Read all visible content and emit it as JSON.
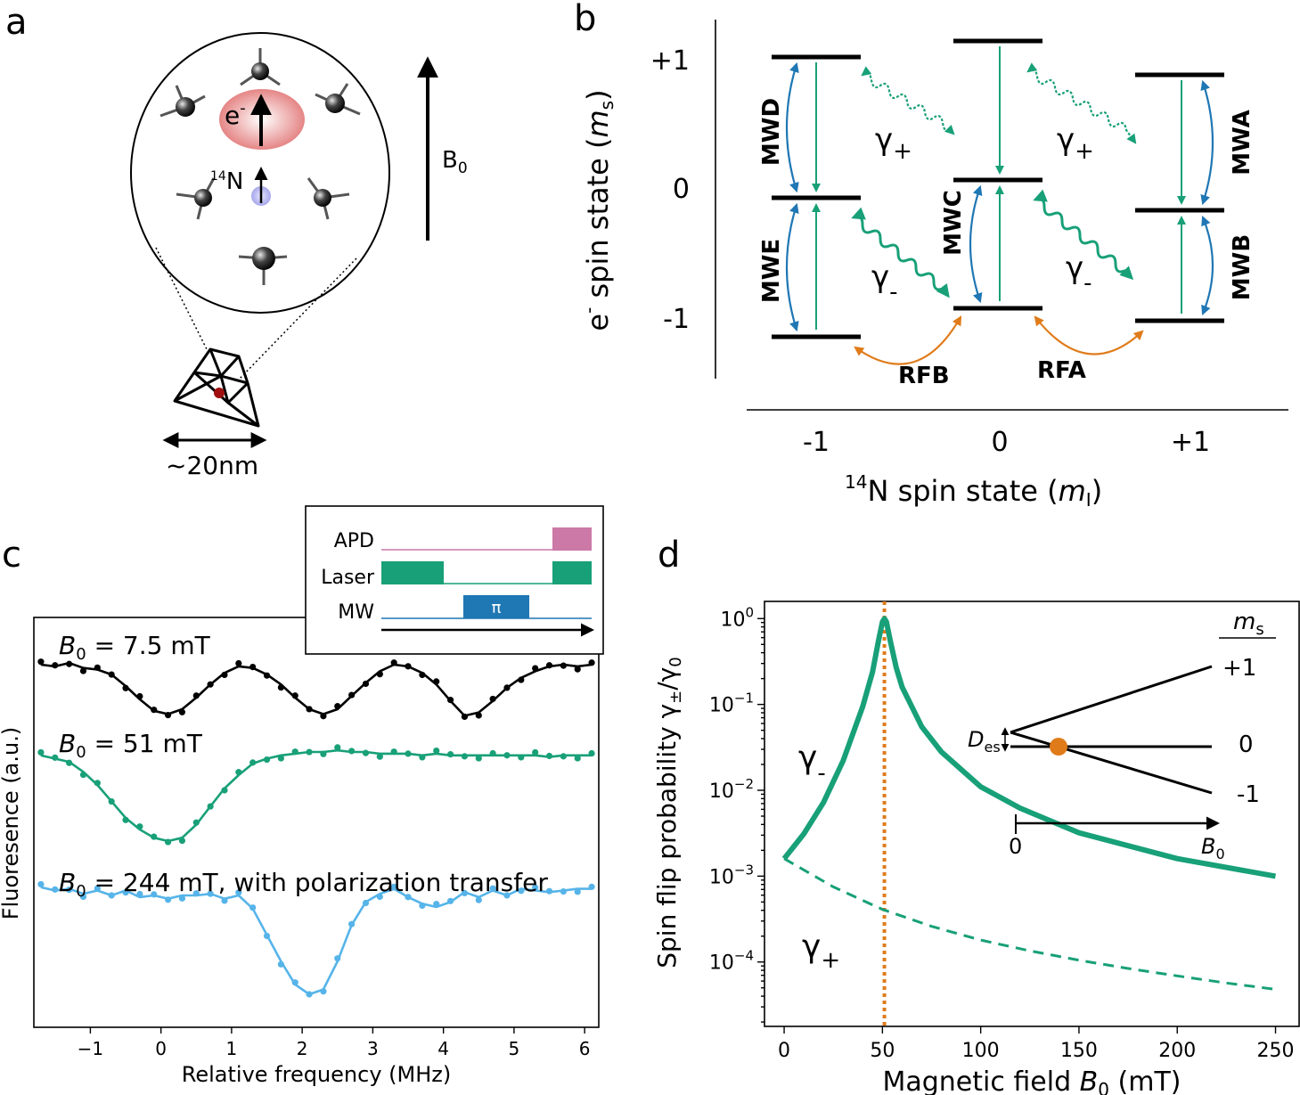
{
  "colors": {
    "green": "#18a078",
    "blue": "#1f77b4",
    "light_blue": "#56b4e9",
    "orange": "#e07b1a",
    "black": "#000000",
    "pink": "#cc79a7"
  },
  "panels": {
    "a": {
      "label": "a",
      "electron_label": "e",
      "electron_sup": "-",
      "nitrogen_sup": "14",
      "nitrogen_label": "N",
      "field_label": "B",
      "field_sub": "0",
      "size_label": "~20nm"
    },
    "b": {
      "label": "b",
      "y_ticks": [
        "+1",
        "0",
        "-1"
      ],
      "y_label": "e",
      "y_label_sup": "-",
      "y_label_rest": " spin state (",
      "y_label_var": "m",
      "y_label_sub": "s",
      "y_label_close": ")",
      "x_ticks": [
        "-1",
        "0",
        "+1"
      ],
      "x_label_sup": "14",
      "x_label": "N spin state (",
      "x_label_var": "m",
      "x_label_sub": "I",
      "x_label_close": ")",
      "transitions": [
        "MWD",
        "MWE",
        "MWC",
        "MWA",
        "MWB",
        "RFB",
        "RFA"
      ],
      "gamma_symbol": "γ",
      "gamma_plus": "+",
      "gamma_minus": "-"
    },
    "c": {
      "label": "c",
      "inset_rows": [
        "APD",
        "Laser",
        "MW"
      ],
      "pi_label": "π",
      "trace_labels": [
        {
          "prefix": "B",
          "sub": "0",
          "text": " = 7.5 mT"
        },
        {
          "prefix": "B",
          "sub": "0",
          "text": " = 51 mT"
        },
        {
          "prefix": "B",
          "sub": "0",
          "text": " = 244 mT, with polarization transfer"
        }
      ],
      "x_label": "Relative frequency (MHz)",
      "y_label": "Fluoresence (a.u.)",
      "x_ticks": [
        "−1",
        "0",
        "1",
        "2",
        "3",
        "4",
        "5",
        "6"
      ]
    },
    "d": {
      "label": "d",
      "y_label": "Spin flip probability γ",
      "y_label_sub": "±",
      "y_label_rest": "/γ",
      "y_label_sub2": "0",
      "x_label": "Magnetic field ",
      "x_label_var": "B",
      "x_label_sub": "0",
      "x_label_unit": " (mT)",
      "x_ticks": [
        "0",
        "50",
        "100",
        "150",
        "200",
        "250"
      ],
      "y_ticks": [
        {
          "base": "10",
          "exp": "0"
        },
        {
          "base": "10",
          "exp": "−1"
        },
        {
          "base": "10",
          "exp": "−2"
        },
        {
          "base": "10",
          "exp": "−3"
        },
        {
          "base": "10",
          "exp": "−4"
        }
      ],
      "curve_minus": "γ",
      "curve_minus_sub": "-",
      "curve_plus": "γ",
      "curve_plus_sub": "+",
      "inset": {
        "title": "m",
        "title_sub": "s",
        "levels": [
          "+1",
          "0",
          "-1"
        ],
        "des_label": "D",
        "des_sub": "es",
        "axis_zero": "0",
        "axis_label": "B",
        "axis_sub": "0"
      }
    }
  },
  "chart_data": [
    {
      "type": "scatter",
      "panel": "c",
      "title": "",
      "xlabel": "Relative frequency (MHz)",
      "ylabel": "Fluoresence (a.u.)",
      "xlim": [
        -1.8,
        6.2
      ],
      "series": [
        {
          "name": "B0 = 7.5 mT",
          "color": "#000000",
          "offset": 0.0,
          "x": [
            -1.7,
            -1.5,
            -1.3,
            -1.1,
            -0.9,
            -0.7,
            -0.5,
            -0.3,
            -0.1,
            0.1,
            0.3,
            0.5,
            0.7,
            0.9,
            1.1,
            1.3,
            1.5,
            1.7,
            1.9,
            2.1,
            2.3,
            2.5,
            2.7,
            2.9,
            3.1,
            3.3,
            3.5,
            3.7,
            3.9,
            4.1,
            4.3,
            4.5,
            4.7,
            4.9,
            5.1,
            5.3,
            5.5,
            5.7,
            5.9,
            6.1
          ],
          "y": [
            0.0,
            0.01,
            -0.01,
            0.02,
            0.03,
            0.06,
            0.13,
            0.21,
            0.28,
            0.3,
            0.27,
            0.2,
            0.12,
            0.05,
            0.01,
            0.02,
            0.06,
            0.12,
            0.2,
            0.27,
            0.3,
            0.27,
            0.19,
            0.11,
            0.04,
            0.0,
            0.01,
            0.05,
            0.12,
            0.22,
            0.31,
            0.29,
            0.22,
            0.14,
            0.08,
            0.04,
            0.01,
            0.0,
            0.01,
            0.0
          ]
        },
        {
          "name": "B0 = 51 mT",
          "color": "#18a078",
          "offset": 0.55,
          "x": [
            -1.7,
            -1.5,
            -1.3,
            -1.1,
            -0.9,
            -0.7,
            -0.5,
            -0.3,
            -0.1,
            0.1,
            0.3,
            0.5,
            0.7,
            0.9,
            1.1,
            1.3,
            1.5,
            1.7,
            1.9,
            2.1,
            2.3,
            2.5,
            2.7,
            2.9,
            3.1,
            3.3,
            3.5,
            3.7,
            3.9,
            4.1,
            4.3,
            4.5,
            4.7,
            4.9,
            5.1,
            5.3,
            5.5,
            5.7,
            5.9,
            6.1
          ],
          "y": [
            0.0,
            0.02,
            0.04,
            0.1,
            0.18,
            0.28,
            0.38,
            0.45,
            0.5,
            0.52,
            0.5,
            0.42,
            0.31,
            0.2,
            0.12,
            0.05,
            0.02,
            0.0,
            -0.01,
            -0.02,
            -0.02,
            -0.03,
            -0.02,
            -0.02,
            -0.01,
            -0.01,
            -0.01,
            0.0,
            -0.01,
            0.0,
            0.0,
            0.0,
            0.0,
            0.0,
            0.0,
            0.0,
            0.01,
            0.0,
            0.0,
            0.0
          ]
        },
        {
          "name": "B0 = 244 mT, with polarization transfer",
          "color": "#56b4e9",
          "offset": 1.35,
          "x": [
            -1.7,
            -1.5,
            -1.3,
            -1.1,
            -0.9,
            -0.7,
            -0.5,
            -0.3,
            -0.1,
            0.1,
            0.3,
            0.5,
            0.7,
            0.9,
            1.1,
            1.3,
            1.5,
            1.7,
            1.9,
            2.1,
            2.3,
            2.5,
            2.7,
            2.9,
            3.1,
            3.3,
            3.5,
            3.7,
            3.9,
            4.1,
            4.3,
            4.5,
            4.7,
            4.9,
            5.1,
            5.3,
            5.5,
            5.7,
            5.9,
            6.1
          ],
          "y": [
            0.0,
            0.02,
            0.01,
            0.04,
            0.02,
            0.05,
            0.02,
            0.06,
            0.05,
            0.07,
            0.05,
            0.05,
            0.04,
            0.07,
            0.05,
            0.13,
            0.29,
            0.45,
            0.59,
            0.65,
            0.62,
            0.45,
            0.23,
            0.09,
            0.04,
            0.01,
            0.06,
            0.1,
            0.12,
            0.09,
            0.03,
            0.06,
            0.02,
            0.05,
            0.01,
            0.02,
            0.03,
            0.02,
            0.01,
            0.01
          ]
        }
      ]
    },
    {
      "type": "line",
      "panel": "d",
      "title": "",
      "xlabel": "Magnetic field B0 (mT)",
      "ylabel": "Spin flip probability γ±/γ0",
      "xlim": [
        -10,
        262
      ],
      "ylim_log10": [
        -4.75,
        0.2
      ],
      "vertical_marker": 51,
      "series": [
        {
          "name": "γ-",
          "style": "solid",
          "color": "#18a078",
          "x": [
            0,
            10,
            20,
            30,
            40,
            45,
            48,
            50,
            51,
            52,
            54,
            57,
            60,
            70,
            80,
            100,
            120,
            150,
            200,
            250
          ],
          "y": [
            0.0016,
            0.0031,
            0.0072,
            0.022,
            0.095,
            0.24,
            0.55,
            0.92,
            1.0,
            0.92,
            0.55,
            0.27,
            0.16,
            0.055,
            0.028,
            0.011,
            0.0062,
            0.0032,
            0.0016,
            0.001
          ]
        },
        {
          "name": "γ+",
          "style": "dashed",
          "color": "#18a078",
          "x": [
            0,
            25,
            50,
            75,
            100,
            125,
            150,
            175,
            200,
            225,
            250
          ],
          "y": [
            0.0016,
            0.00075,
            0.00041,
            0.00026,
            0.00018,
            0.000135,
            0.000105,
            8.4e-05,
            6.9e-05,
            5.7e-05,
            4.8e-05
          ]
        }
      ]
    }
  ]
}
